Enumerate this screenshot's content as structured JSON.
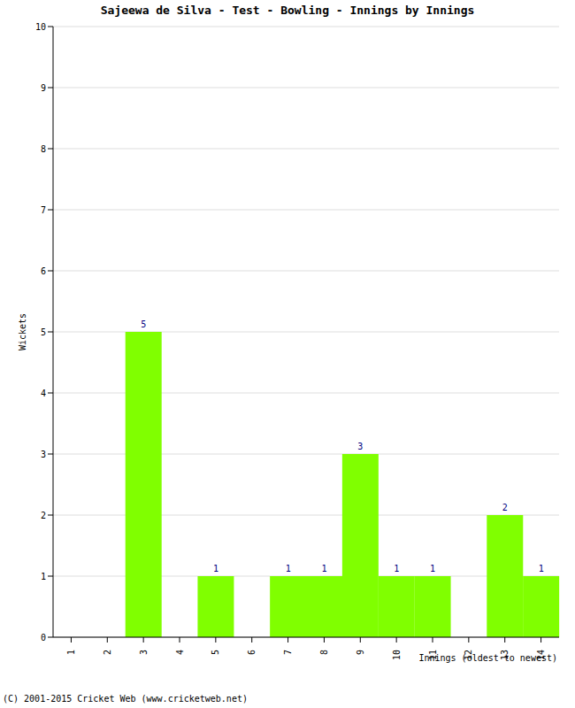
{
  "chart_data": {
    "type": "bar",
    "title": "Sajeewa de Silva - Test - Bowling - Innings by Innings",
    "x_label": "Innings (oldest to newest)",
    "y_label": "Wickets",
    "categories": [
      "1",
      "2",
      "3",
      "4",
      "5",
      "6",
      "7",
      "8",
      "9",
      "10",
      "11",
      "12",
      "13",
      "14"
    ],
    "values": [
      0,
      0,
      5,
      0,
      1,
      0,
      1,
      1,
      3,
      1,
      1,
      0,
      2,
      1
    ],
    "color": "#80ff00",
    "ylim": [
      0,
      10
    ],
    "yticks": [
      0,
      1,
      2,
      3,
      4,
      5,
      6,
      7,
      8,
      9,
      10
    ],
    "grid": true,
    "data_labels": true,
    "annotations": [
      "(C) 2001-2015 Cricket Web (www.cricketweb.net)"
    ]
  }
}
